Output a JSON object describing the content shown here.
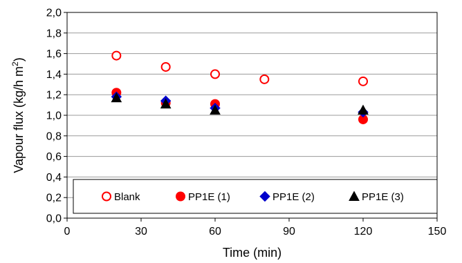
{
  "chart_data": {
    "type": "scatter",
    "xlabel": "Time (min)",
    "ylabel_main": "Vapour flux (kg/h m",
    "ylabel_sup": "2",
    "ylabel_close": ")",
    "xlim": [
      0,
      150
    ],
    "ylim": [
      0,
      2.0
    ],
    "xticks": [
      0,
      30,
      60,
      90,
      120,
      150
    ],
    "xtick_labels": [
      "0",
      "30",
      "60",
      "90",
      "120",
      "150"
    ],
    "yticks": [
      0,
      0.2,
      0.4,
      0.6,
      0.8,
      1.0,
      1.2,
      1.4,
      1.6,
      1.8,
      2.0
    ],
    "ytick_labels": [
      "0,0",
      "0,2",
      "0,4",
      "0,6",
      "0,8",
      "1,0",
      "1,2",
      "1,4",
      "1,6",
      "1,8",
      "2,0"
    ],
    "grid": "horizontal",
    "legend_position": "bottom, inside plot area",
    "series": [
      {
        "name": "Blank",
        "marker": "open-circle",
        "color": "#ff0000",
        "x": [
          20,
          40,
          60,
          80,
          120
        ],
        "y": [
          1.58,
          1.47,
          1.4,
          1.35,
          1.33
        ]
      },
      {
        "name": "PP1E (1)",
        "marker": "filled-circle",
        "color": "#ff0000",
        "x": [
          20,
          40,
          60,
          120
        ],
        "y": [
          1.22,
          1.12,
          1.11,
          0.96
        ]
      },
      {
        "name": "PP1E (2)",
        "marker": "diamond",
        "color": "#0000cc",
        "x": [
          20,
          40,
          60,
          120
        ],
        "y": [
          1.18,
          1.14,
          1.07,
          1.03
        ]
      },
      {
        "name": "PP1E (3)",
        "marker": "triangle",
        "color": "#000000",
        "x": [
          20,
          40,
          60,
          120
        ],
        "y": [
          1.17,
          1.11,
          1.05,
          1.05
        ]
      }
    ]
  }
}
